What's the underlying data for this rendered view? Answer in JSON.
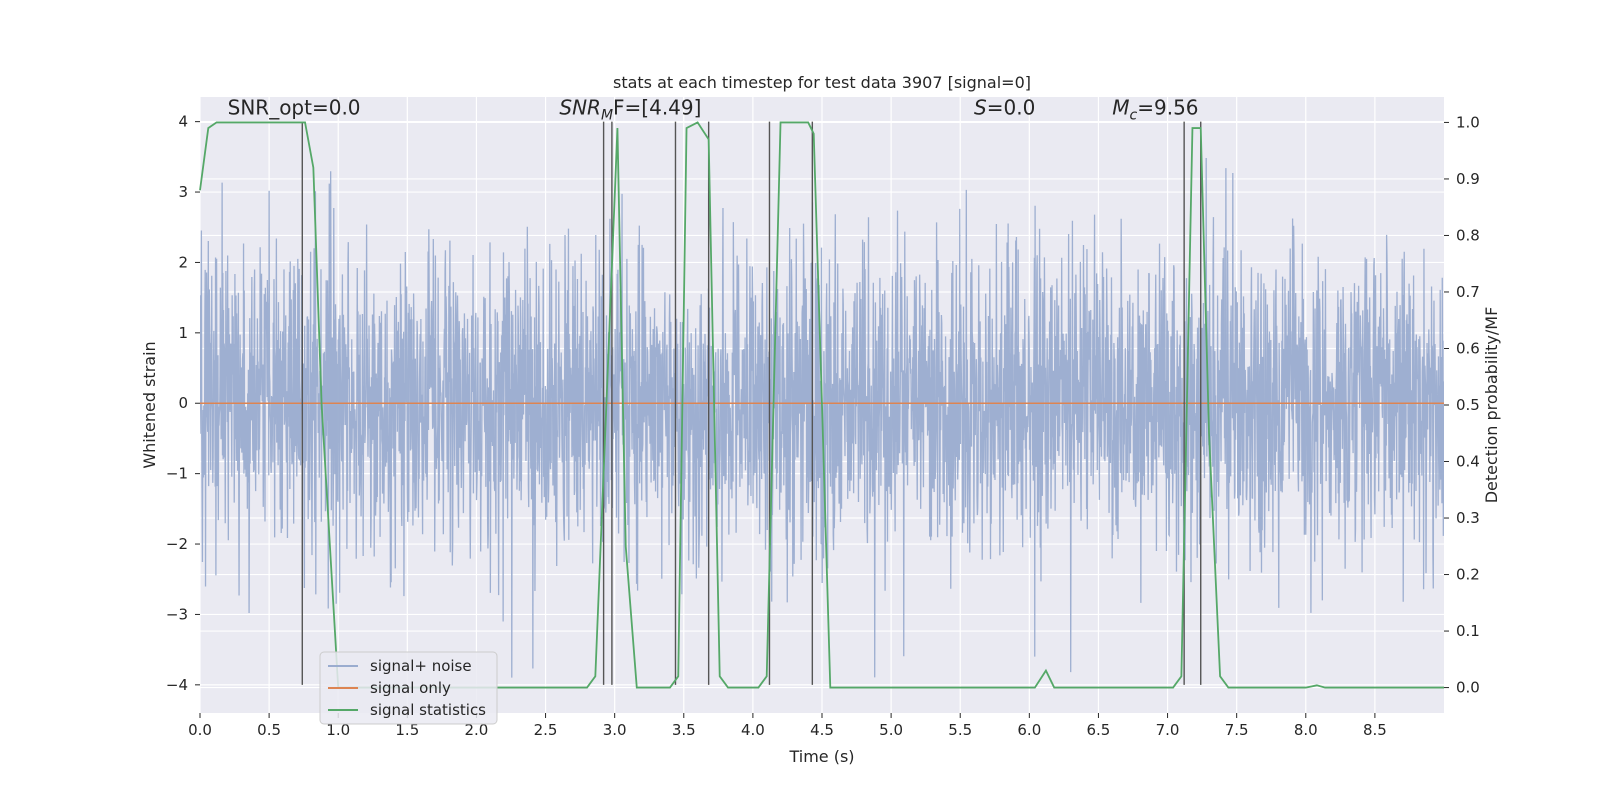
{
  "chart_data": {
    "type": "line",
    "title": "stats at each timestep for test data 3907 [signal=0]",
    "xlabel": "Time (s)",
    "ylabel_left": "Whitened strain",
    "ylabel_right": "Detection probability/MF",
    "xlim": [
      0.0,
      9.0
    ],
    "ylim_left": [
      -4.4,
      4.35
    ],
    "ylim_right": [
      -0.045,
      1.045
    ],
    "x_ticks": [
      0.0,
      0.5,
      1.0,
      1.5,
      2.0,
      2.5,
      3.0,
      3.5,
      4.0,
      4.5,
      5.0,
      5.5,
      6.0,
      6.5,
      7.0,
      7.5,
      8.0,
      8.5
    ],
    "x_tick_labels": [
      "0.0",
      "0.5",
      "1.0",
      "1.5",
      "2.0",
      "2.5",
      "3.0",
      "3.5",
      "4.0",
      "4.5",
      "5.0",
      "5.5",
      "6.0",
      "6.5",
      "7.0",
      "7.5",
      "8.0",
      "8.5"
    ],
    "y_ticks_left": [
      -4,
      -3,
      -2,
      -1,
      0,
      1,
      2,
      3,
      4
    ],
    "y_tick_labels_left": [
      "−4",
      "−3",
      "−2",
      "−1",
      "0",
      "1",
      "2",
      "3",
      "4"
    ],
    "y_ticks_right": [
      0.0,
      0.1,
      0.2,
      0.3,
      0.4,
      0.5,
      0.6,
      0.7,
      0.8,
      0.9,
      1.0
    ],
    "y_tick_labels_right": [
      "0.0",
      "0.1",
      "0.2",
      "0.3",
      "0.4",
      "0.5",
      "0.6",
      "0.7",
      "0.8",
      "0.9",
      "1.0"
    ],
    "grid": true,
    "legend_position": "lower-left",
    "colors": {
      "background": "#eaeaf2",
      "grid": "#ffffff",
      "noise": "#9aaccf",
      "signal_only": "#dd8452",
      "statistics": "#55a868",
      "markers": "#555555"
    },
    "series": [
      {
        "name": "signal+ noise",
        "axis": "left",
        "description_values": {
          "bulk_range": [
            -1.6,
            1.6
          ],
          "extreme_range": [
            -4.0,
            4.0
          ]
        }
      },
      {
        "name": "signal only",
        "axis": "left",
        "x": [
          0.0,
          9.0
        ],
        "y": [
          0.0,
          0.0
        ]
      },
      {
        "name": "signal statistics",
        "axis": "right",
        "x": [
          0.0,
          0.06,
          0.12,
          0.5,
          0.7,
          0.76,
          0.82,
          0.88,
          1.0,
          1.3,
          2.0,
          2.8,
          2.86,
          2.94,
          3.02,
          3.08,
          3.16,
          3.4,
          3.46,
          3.52,
          3.6,
          3.68,
          3.76,
          3.82,
          4.04,
          4.1,
          4.2,
          4.4,
          4.44,
          4.5,
          4.56,
          5.0,
          6.04,
          6.12,
          6.18,
          6.3,
          7.04,
          7.1,
          7.18,
          7.24,
          7.3,
          7.38,
          7.44,
          8.0,
          8.08,
          8.14,
          9.0
        ],
        "y": [
          0.88,
          0.99,
          1.0,
          1.0,
          1.0,
          1.0,
          0.92,
          0.5,
          0.0,
          0.0,
          0.0,
          0.0,
          0.02,
          0.5,
          0.99,
          0.25,
          0.0,
          0.0,
          0.02,
          0.99,
          1.0,
          0.97,
          0.02,
          0.0,
          0.0,
          0.02,
          1.0,
          1.0,
          0.98,
          0.5,
          0.0,
          0.0,
          0.0,
          0.03,
          0.0,
          0.0,
          0.0,
          0.02,
          0.99,
          0.99,
          0.45,
          0.02,
          0.0,
          0.0,
          0.004,
          0.0,
          0.0
        ]
      }
    ],
    "vertical_markers": [
      0.74,
      2.92,
      2.98,
      3.44,
      3.68,
      4.12,
      4.43,
      7.12,
      7.24
    ],
    "annotations": [
      {
        "text": "SNR_opt=0.0",
        "x": 0.2,
        "y": 4.1
      },
      {
        "text": "SNR",
        "sub": "M",
        "suffix": "F=[4.49]",
        "x": 2.6,
        "y": 4.1
      },
      {
        "text": "S",
        "suffix": "=0.0",
        "x": 5.6,
        "y": 4.1
      },
      {
        "text": "M",
        "sub": "c",
        "suffix": "=9.56",
        "x": 6.6,
        "y": 4.1
      }
    ]
  }
}
